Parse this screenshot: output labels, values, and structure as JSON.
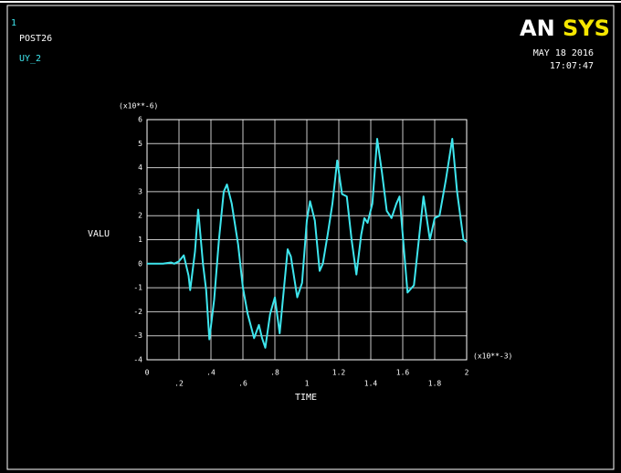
{
  "window_number": "1",
  "program": "POST26",
  "logo": [
    "AN",
    "SYS"
  ],
  "date": "MAY 18 2016",
  "time": "17:07:47",
  "chart_data": {
    "type": "line",
    "x_label": "TIME",
    "y_label": "VALU",
    "x_multiplier": "(x10**-3)",
    "y_multiplier": "(x10**-6)",
    "xlim": [
      0,
      2
    ],
    "ylim": [
      -4,
      6
    ],
    "xticks": [
      0,
      {
        "value": 0.2,
        "label": ".2"
      },
      {
        "value": 0.4,
        "label": ".4"
      },
      {
        "value": 0.6,
        "label": ".6"
      },
      {
        "value": 0.8,
        "label": ".8"
      },
      1,
      1.2,
      1.4,
      1.6,
      1.8,
      2
    ],
    "yticks": [
      -4,
      -3,
      -2,
      -1,
      0,
      1,
      2,
      3,
      4,
      5,
      6
    ],
    "grid": true,
    "x": [
      0,
      0.1,
      0.15,
      0.17,
      0.2,
      0.23,
      0.26,
      0.27,
      0.3,
      0.32,
      0.35,
      0.37,
      0.39,
      0.42,
      0.45,
      0.48,
      0.5,
      0.53,
      0.57,
      0.6,
      0.63,
      0.67,
      0.7,
      0.72,
      0.74,
      0.77,
      0.8,
      0.83,
      0.88,
      0.9,
      0.94,
      0.97,
      1.0,
      1.02,
      1.05,
      1.08,
      1.1,
      1.13,
      1.16,
      1.19,
      1.22,
      1.25,
      1.28,
      1.31,
      1.34,
      1.36,
      1.38,
      1.41,
      1.44,
      1.47,
      1.5,
      1.53,
      1.56,
      1.58,
      1.63,
      1.67,
      1.73,
      1.77,
      1.8,
      1.83,
      1.87,
      1.91,
      1.94,
      1.98,
      2.0
    ],
    "series": [
      {
        "name": "UY_2",
        "color": "#3ee6ee",
        "values": [
          0,
          0,
          0.05,
          0,
          0.1,
          0.35,
          -0.5,
          -1.1,
          0.5,
          2.25,
          0,
          -1.1,
          -3.15,
          -1.5,
          1.0,
          3.0,
          3.3,
          2.5,
          0.8,
          -1,
          -2.1,
          -3.1,
          -2.55,
          -3.1,
          -3.5,
          -2.1,
          -1.4,
          -2.9,
          0.6,
          0.3,
          -1.4,
          -0.8,
          1.8,
          2.6,
          1.8,
          -0.3,
          0,
          1.2,
          2.5,
          4.3,
          2.9,
          2.8,
          1.0,
          -0.45,
          1.2,
          1.9,
          1.7,
          2.5,
          5.2,
          3.8,
          2.2,
          1.9,
          2.5,
          2.8,
          -1.2,
          -0.9,
          2.8,
          1.0,
          1.9,
          2.0,
          3.5,
          5.2,
          3.0,
          1.0,
          0.9
        ]
      }
    ]
  }
}
